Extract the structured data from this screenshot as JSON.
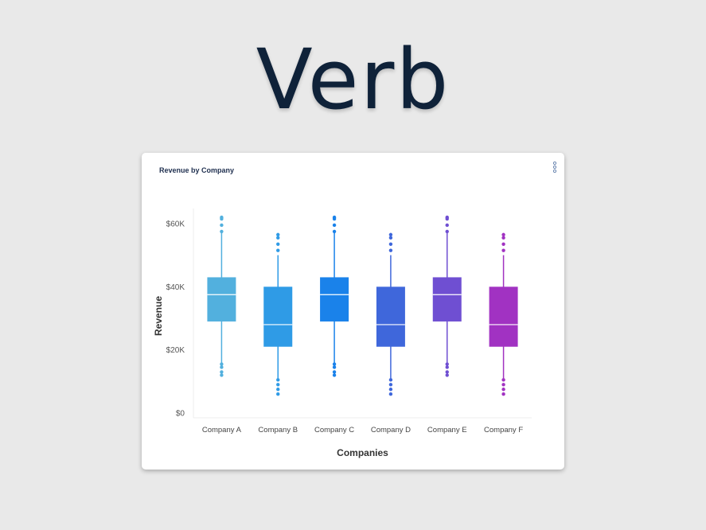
{
  "brand": {
    "logo_text": "Verb"
  },
  "card": {
    "title": "Revenue by Company",
    "menu_icon": "kebab-menu-icon"
  },
  "chart_data": {
    "type": "box",
    "title": "Revenue by Company",
    "xlabel": "Companies",
    "ylabel": "Revenue",
    "ylim": [
      0,
      62000
    ],
    "yticks": [
      0,
      20000,
      40000,
      60000
    ],
    "ytick_labels": [
      "$0",
      "$20K",
      "$40K",
      "$60K"
    ],
    "grid": false,
    "legend": "none",
    "categories": [
      "Company A",
      "Company B",
      "Company C",
      "Company D",
      "Company E",
      "Company F"
    ],
    "boxes": [
      {
        "name": "Company A",
        "color": "#52b0de",
        "min": 16000,
        "q1": 29000,
        "median": 37500,
        "q3": 43000,
        "max": 57000,
        "outliers": [
          12000,
          13000,
          14500,
          15500,
          57500,
          59500,
          61500,
          62000
        ]
      },
      {
        "name": "Company B",
        "color": "#2f9be6",
        "min": 11000,
        "q1": 21000,
        "median": 28000,
        "q3": 40000,
        "max": 50000,
        "outliers": [
          6000,
          7500,
          9000,
          10500,
          51500,
          53500,
          55500,
          56500
        ]
      },
      {
        "name": "Company C",
        "color": "#1a82ea",
        "min": 16000,
        "q1": 29000,
        "median": 37500,
        "q3": 43000,
        "max": 57000,
        "outliers": [
          12000,
          13000,
          14500,
          15500,
          57500,
          59500,
          61500,
          62000
        ]
      },
      {
        "name": "Company D",
        "color": "#3f67db",
        "min": 11000,
        "q1": 21000,
        "median": 28000,
        "q3": 40000,
        "max": 50000,
        "outliers": [
          6000,
          7500,
          9000,
          10500,
          51500,
          53500,
          55500,
          56500
        ]
      },
      {
        "name": "Company E",
        "color": "#6f4fd2",
        "min": 16000,
        "q1": 29000,
        "median": 37500,
        "q3": 43000,
        "max": 57000,
        "outliers": [
          12000,
          13000,
          14500,
          15500,
          57500,
          59500,
          61500,
          62000
        ]
      },
      {
        "name": "Company F",
        "color": "#a132c2",
        "min": 11000,
        "q1": 21000,
        "median": 28000,
        "q3": 40000,
        "max": 50000,
        "outliers": [
          6000,
          7500,
          9000,
          10500,
          51500,
          53500,
          55500,
          56500
        ]
      }
    ]
  }
}
